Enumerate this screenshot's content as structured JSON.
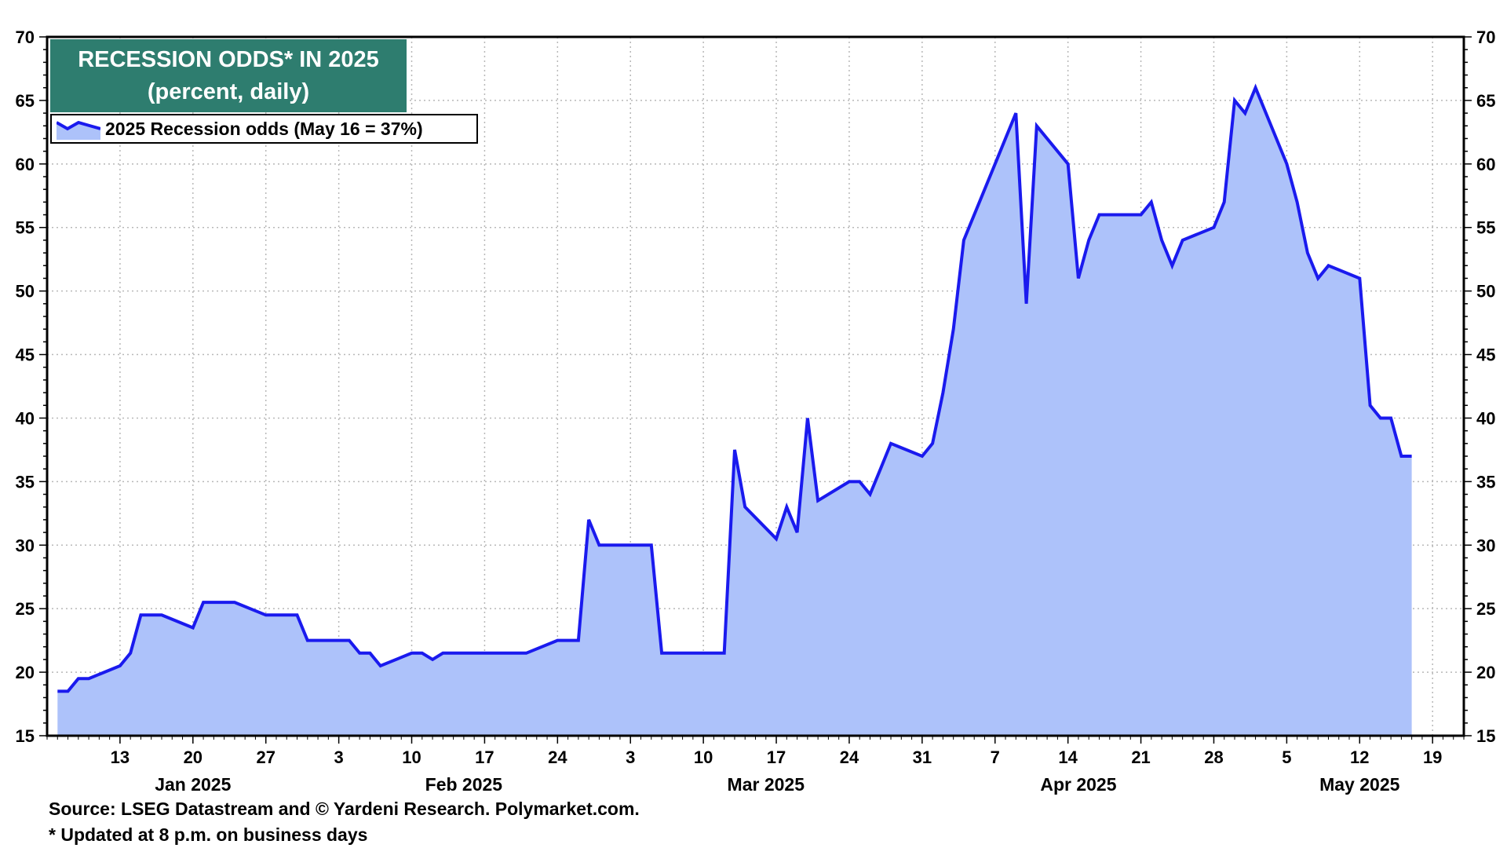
{
  "chart_data": {
    "type": "area",
    "title": "RECESSION ODDS* IN 2025",
    "subtitle": "(percent, daily)",
    "ylim": [
      15,
      70
    ],
    "y_ticks": [
      15,
      20,
      25,
      30,
      35,
      40,
      45,
      50,
      55,
      60,
      65,
      70
    ],
    "y_axis_sides": "left and right",
    "grid": true,
    "legend_position": "top-left",
    "x_ticks": [
      {
        "label": "13",
        "date": "2025-01-13"
      },
      {
        "label": "20",
        "date": "2025-01-20"
      },
      {
        "label": "27",
        "date": "2025-01-27"
      },
      {
        "label": "3",
        "date": "2025-02-03"
      },
      {
        "label": "10",
        "date": "2025-02-10"
      },
      {
        "label": "17",
        "date": "2025-02-17"
      },
      {
        "label": "24",
        "date": "2025-02-24"
      },
      {
        "label": "3",
        "date": "2025-03-03"
      },
      {
        "label": "10",
        "date": "2025-03-10"
      },
      {
        "label": "17",
        "date": "2025-03-17"
      },
      {
        "label": "24",
        "date": "2025-03-24"
      },
      {
        "label": "31",
        "date": "2025-03-31"
      },
      {
        "label": "7",
        "date": "2025-04-07"
      },
      {
        "label": "14",
        "date": "2025-04-14"
      },
      {
        "label": "21",
        "date": "2025-04-21"
      },
      {
        "label": "28",
        "date": "2025-04-28"
      },
      {
        "label": "5",
        "date": "2025-05-05"
      },
      {
        "label": "12",
        "date": "2025-05-12"
      },
      {
        "label": "19",
        "date": "2025-05-19"
      }
    ],
    "month_labels": [
      {
        "label": "Jan 2025",
        "date": "2025-01-20"
      },
      {
        "label": "Feb 2025",
        "date": "2025-02-15"
      },
      {
        "label": "Mar 2025",
        "date": "2025-03-16"
      },
      {
        "label": "Apr 2025",
        "date": "2025-04-15"
      },
      {
        "label": "May 2025",
        "date": "2025-05-12"
      }
    ],
    "series": [
      {
        "name": "2025 Recession odds (May 16 = 37%)",
        "color": "#1a1aee",
        "fill": "#adc2fa",
        "points": [
          [
            "2025-01-07",
            18.5
          ],
          [
            "2025-01-08",
            18.5
          ],
          [
            "2025-01-09",
            19.5
          ],
          [
            "2025-01-10",
            19.5
          ],
          [
            "2025-01-13",
            20.5
          ],
          [
            "2025-01-14",
            21.5
          ],
          [
            "2025-01-15",
            24.5
          ],
          [
            "2025-01-16",
            24.5
          ],
          [
            "2025-01-17",
            24.5
          ],
          [
            "2025-01-20",
            23.5
          ],
          [
            "2025-01-21",
            25.5
          ],
          [
            "2025-01-22",
            25.5
          ],
          [
            "2025-01-23",
            25.5
          ],
          [
            "2025-01-24",
            25.5
          ],
          [
            "2025-01-27",
            24.5
          ],
          [
            "2025-01-28",
            24.5
          ],
          [
            "2025-01-29",
            24.5
          ],
          [
            "2025-01-30",
            24.5
          ],
          [
            "2025-01-31",
            22.5
          ],
          [
            "2025-02-03",
            22.5
          ],
          [
            "2025-02-04",
            22.5
          ],
          [
            "2025-02-05",
            21.5
          ],
          [
            "2025-02-06",
            21.5
          ],
          [
            "2025-02-07",
            20.5
          ],
          [
            "2025-02-10",
            21.5
          ],
          [
            "2025-02-11",
            21.5
          ],
          [
            "2025-02-12",
            21
          ],
          [
            "2025-02-13",
            21.5
          ],
          [
            "2025-02-14",
            21.5
          ],
          [
            "2025-02-17",
            21.5
          ],
          [
            "2025-02-18",
            21.5
          ],
          [
            "2025-02-19",
            21.5
          ],
          [
            "2025-02-20",
            21.5
          ],
          [
            "2025-02-21",
            21.5
          ],
          [
            "2025-02-24",
            22.5
          ],
          [
            "2025-02-25",
            22.5
          ],
          [
            "2025-02-26",
            22.5
          ],
          [
            "2025-02-27",
            32
          ],
          [
            "2025-02-28",
            30
          ],
          [
            "2025-03-03",
            30
          ],
          [
            "2025-03-04",
            30
          ],
          [
            "2025-03-05",
            30
          ],
          [
            "2025-03-06",
            21.5
          ],
          [
            "2025-03-07",
            21.5
          ],
          [
            "2025-03-10",
            21.5
          ],
          [
            "2025-03-11",
            21.5
          ],
          [
            "2025-03-12",
            21.5
          ],
          [
            "2025-03-13",
            37.5
          ],
          [
            "2025-03-14",
            33
          ],
          [
            "2025-03-17",
            30.5
          ],
          [
            "2025-03-18",
            33
          ],
          [
            "2025-03-19",
            31
          ],
          [
            "2025-03-20",
            40
          ],
          [
            "2025-03-21",
            33.5
          ],
          [
            "2025-03-24",
            35
          ],
          [
            "2025-03-25",
            35
          ],
          [
            "2025-03-26",
            34
          ],
          [
            "2025-03-27",
            36
          ],
          [
            "2025-03-28",
            38
          ],
          [
            "2025-03-31",
            37
          ],
          [
            "2025-04-01",
            38
          ],
          [
            "2025-04-02",
            42
          ],
          [
            "2025-04-03",
            47
          ],
          [
            "2025-04-04",
            54
          ],
          [
            "2025-04-07",
            60
          ],
          [
            "2025-04-08",
            62
          ],
          [
            "2025-04-09",
            64
          ],
          [
            "2025-04-10",
            49
          ],
          [
            "2025-04-11",
            63
          ],
          [
            "2025-04-14",
            60
          ],
          [
            "2025-04-15",
            51
          ],
          [
            "2025-04-16",
            54
          ],
          [
            "2025-04-17",
            56
          ],
          [
            "2025-04-18",
            56
          ],
          [
            "2025-04-21",
            56
          ],
          [
            "2025-04-22",
            57
          ],
          [
            "2025-04-23",
            54
          ],
          [
            "2025-04-24",
            52
          ],
          [
            "2025-04-25",
            54
          ],
          [
            "2025-04-28",
            55
          ],
          [
            "2025-04-29",
            57
          ],
          [
            "2025-04-30",
            65
          ],
          [
            "2025-05-01",
            64
          ],
          [
            "2025-05-02",
            66
          ],
          [
            "2025-05-05",
            60
          ],
          [
            "2025-05-06",
            57
          ],
          [
            "2025-05-07",
            53
          ],
          [
            "2025-05-08",
            51
          ],
          [
            "2025-05-09",
            52
          ],
          [
            "2025-05-12",
            51
          ],
          [
            "2025-05-13",
            41
          ],
          [
            "2025-05-14",
            40
          ],
          [
            "2025-05-15",
            40
          ],
          [
            "2025-05-16",
            37
          ],
          [
            "2025-05-17",
            37
          ]
        ]
      }
    ]
  },
  "footer": {
    "source": "Source: LSEG Datastream and © Yardeni Research. Polymarket.com.",
    "note": "* Updated at 8 p.m. on business days"
  }
}
